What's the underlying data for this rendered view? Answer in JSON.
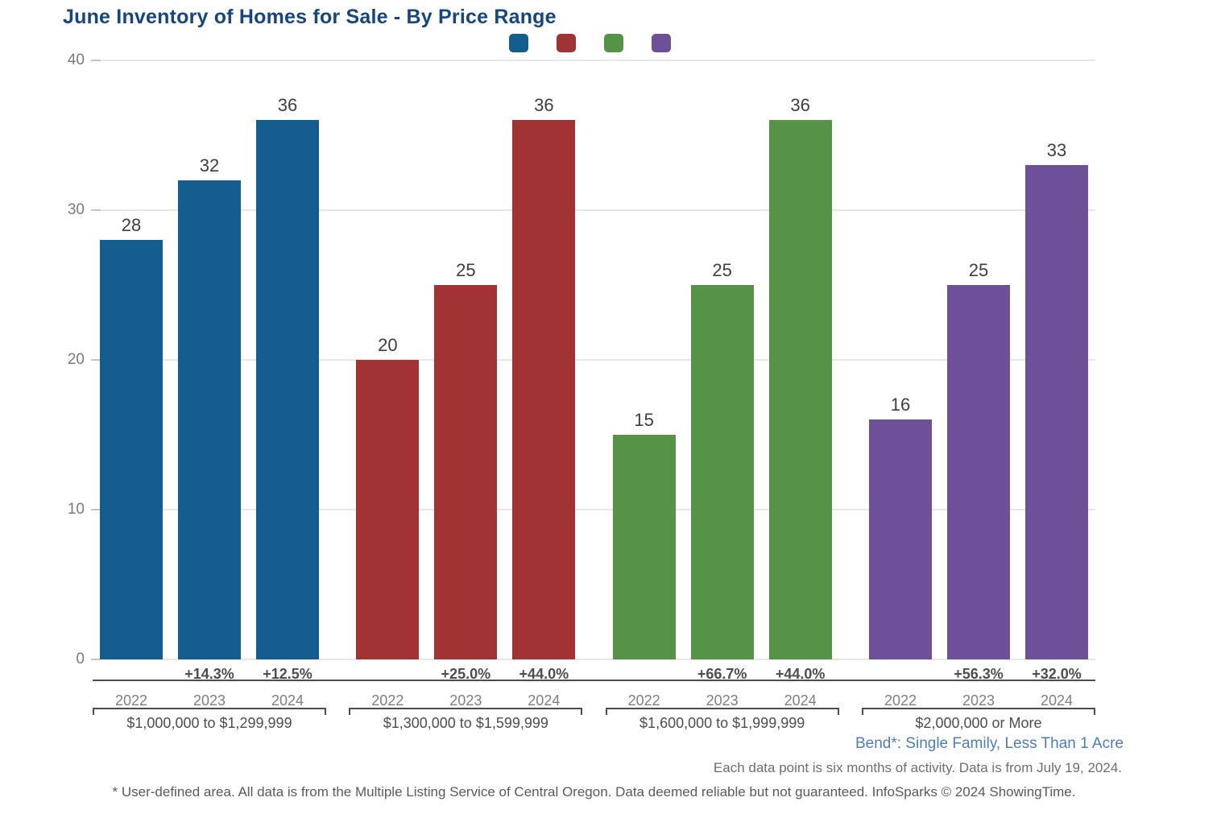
{
  "title": "June Inventory of Homes for Sale - By Price Range",
  "colors": {
    "title_text": "#17477A",
    "legend_text": "#1F4E79",
    "blue": "#135E8E",
    "red": "#A23334",
    "green": "#579347",
    "purple": "#6E5098",
    "gridline": "#E7E7E7",
    "axis_text": "#7A7A7A",
    "divider": "#4D4D4D",
    "area_label_text": "#4E7CB5"
  },
  "chart_data": {
    "type": "bar",
    "title": "June Inventory of Homes for Sale - By Price Range",
    "categories": [
      "2022",
      "2023",
      "2024"
    ],
    "ylim": [
      0,
      40
    ],
    "yticks": [
      0,
      10,
      20,
      30,
      40
    ],
    "grid": true,
    "legend_position": "top",
    "series": [
      {
        "name": "$1,000,000 to $1,299,999",
        "color": "#135E8E",
        "values": [
          28,
          32,
          36
        ],
        "pct_changes": [
          "",
          "+14.3%",
          "+12.5%"
        ]
      },
      {
        "name": "$1,300,000 to $1,599,999",
        "color": "#A23334",
        "values": [
          20,
          25,
          36
        ],
        "pct_changes": [
          "",
          "+25.0%",
          "+44.0%"
        ]
      },
      {
        "name": "$1,600,000 to $1,999,999",
        "color": "#579347",
        "values": [
          15,
          25,
          36
        ],
        "pct_changes": [
          "",
          "+66.7%",
          "+44.0%"
        ]
      },
      {
        "name": "$2,000,000 or More",
        "color": "#6E5098",
        "values": [
          16,
          25,
          33
        ],
        "pct_changes": [
          "",
          "+56.3%",
          "+32.0%"
        ]
      }
    ]
  },
  "footer": {
    "area_label": "Bend*: Single Family, Less Than 1 Acre",
    "data_note": "Each data point is six months of activity. Data is from July 19, 2024.",
    "disclaimer": "* User-defined area. All data is from the Multiple Listing Service of Central Oregon. Data deemed reliable but not guaranteed. InfoSparks © 2024 ShowingTime."
  }
}
